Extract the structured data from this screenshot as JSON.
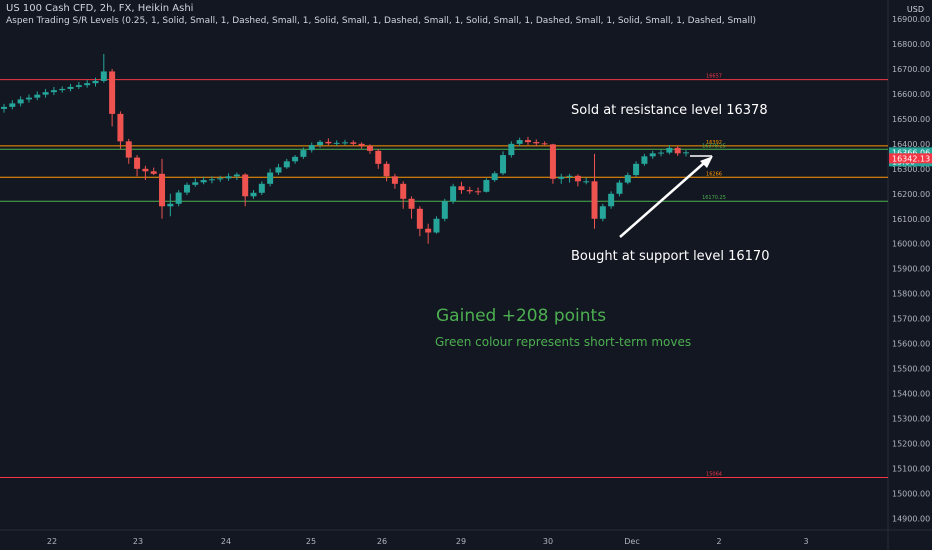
{
  "header": {
    "symbol_line": "US 100 Cash CFD, 2h, FX, Heikin Ashi",
    "indicator_line": "Aspen Trading S/R Levels (0.25, 1, Solid, Small, 1, Dashed, Small, 1, Solid, Small, 1, Dashed, Small, 1, Solid, Small, 1, Dashed, Small, 1, Solid, Small, 1, Dashed, Small)"
  },
  "currency": "USD",
  "colors": {
    "background": "#131722",
    "up_candle": "#26a69a",
    "down_candle": "#ef5350",
    "resistance_line": "#f23645",
    "support_line": "#4caf50",
    "orange_line": "#ff9800",
    "annotation_green": "#4caf50",
    "annotation_white": "#ffffff",
    "axis_text": "#b2b5be"
  },
  "chart_data": {
    "type": "candlestick",
    "title": "US 100 Cash CFD, 2h, FX, Heikin Ashi",
    "y_axis": {
      "range": [
        14880,
        16950
      ],
      "ticks": [
        14900,
        15000,
        15100,
        15200,
        15300,
        15400,
        15500,
        15600,
        15700,
        15800,
        15900,
        16000,
        16100,
        16200,
        16300,
        16400,
        16500,
        16600,
        16700,
        16800,
        16900
      ],
      "tick_labels": [
        "14900.00",
        "15000.00",
        "15100.00",
        "15200.00",
        "15300.00",
        "15400.00",
        "15500.00",
        "15600.00",
        "15700.00",
        "15800.00",
        "15900.00",
        "16000.00",
        "16100.00",
        "16200.00",
        "16300.00",
        "16400.00",
        "16500.00",
        "16600.00",
        "16700.00",
        "16800.00",
        "16900.00"
      ],
      "side": "right"
    },
    "x_axis": {
      "labels": [
        "22",
        "23",
        "24",
        "25",
        "26",
        "29",
        "30",
        "Dec",
        "2",
        "3"
      ]
    },
    "candles": [
      [
        16540,
        16560,
        16525,
        16548
      ],
      [
        16548,
        16575,
        16538,
        16562
      ],
      [
        16562,
        16590,
        16550,
        16578
      ],
      [
        16578,
        16598,
        16565,
        16585
      ],
      [
        16585,
        16610,
        16575,
        16597
      ],
      [
        16597,
        16620,
        16585,
        16607
      ],
      [
        16607,
        16628,
        16595,
        16615
      ],
      [
        16615,
        16630,
        16605,
        16620
      ],
      [
        16620,
        16640,
        16610,
        16628
      ],
      [
        16628,
        16648,
        16620,
        16635
      ],
      [
        16635,
        16655,
        16625,
        16643
      ],
      [
        16643,
        16665,
        16630,
        16652
      ],
      [
        16652,
        16760,
        16645,
        16690
      ],
      [
        16690,
        16700,
        16470,
        16520
      ],
      [
        16520,
        16530,
        16380,
        16410
      ],
      [
        16410,
        16420,
        16320,
        16345
      ],
      [
        16345,
        16355,
        16270,
        16300
      ],
      [
        16300,
        16312,
        16255,
        16290
      ],
      [
        16290,
        16305,
        16275,
        16280
      ],
      [
        16280,
        16340,
        16100,
        16150
      ],
      [
        16150,
        16200,
        16110,
        16160
      ],
      [
        16160,
        16215,
        16150,
        16205
      ],
      [
        16205,
        16245,
        16195,
        16236
      ],
      [
        16236,
        16262,
        16228,
        16246
      ],
      [
        16246,
        16268,
        16238,
        16255
      ],
      [
        16255,
        16270,
        16242,
        16258
      ],
      [
        16258,
        16272,
        16248,
        16262
      ],
      [
        16262,
        16282,
        16252,
        16270
      ],
      [
        16270,
        16285,
        16255,
        16277
      ],
      [
        16277,
        16282,
        16150,
        16190
      ],
      [
        16190,
        16215,
        16180,
        16204
      ],
      [
        16204,
        16250,
        16195,
        16240
      ],
      [
        16240,
        16300,
        16230,
        16285
      ],
      [
        16285,
        16320,
        16275,
        16306
      ],
      [
        16306,
        16340,
        16300,
        16330
      ],
      [
        16330,
        16355,
        16320,
        16348
      ],
      [
        16348,
        16385,
        16340,
        16375
      ],
      [
        16375,
        16405,
        16365,
        16395
      ],
      [
        16395,
        16415,
        16385,
        16408
      ],
      [
        16408,
        16422,
        16395,
        16402
      ],
      [
        16402,
        16414,
        16392,
        16404
      ],
      [
        16404,
        16416,
        16395,
        16406
      ],
      [
        16406,
        16414,
        16390,
        16400
      ],
      [
        16400,
        16406,
        16380,
        16392
      ],
      [
        16392,
        16398,
        16360,
        16372
      ],
      [
        16372,
        16380,
        16300,
        16320
      ],
      [
        16320,
        16330,
        16250,
        16270
      ],
      [
        16270,
        16280,
        16220,
        16240
      ],
      [
        16240,
        16250,
        16140,
        16180
      ],
      [
        16180,
        16190,
        16100,
        16140
      ],
      [
        16140,
        16150,
        16030,
        16060
      ],
      [
        16060,
        16080,
        16000,
        16045
      ],
      [
        16045,
        16110,
        16040,
        16100
      ],
      [
        16100,
        16180,
        16090,
        16170
      ],
      [
        16170,
        16240,
        16160,
        16230
      ],
      [
        16230,
        16248,
        16200,
        16215
      ],
      [
        16215,
        16228,
        16200,
        16210
      ],
      [
        16210,
        16225,
        16195,
        16208
      ],
      [
        16208,
        16262,
        16205,
        16255
      ],
      [
        16255,
        16290,
        16248,
        16282
      ],
      [
        16282,
        16370,
        16275,
        16355
      ],
      [
        16355,
        16410,
        16345,
        16400
      ],
      [
        16400,
        16425,
        16390,
        16415
      ],
      [
        16415,
        16428,
        16395,
        16407
      ],
      [
        16407,
        16418,
        16390,
        16402
      ],
      [
        16402,
        16410,
        16395,
        16398
      ],
      [
        16398,
        16400,
        16240,
        16260
      ],
      [
        16260,
        16280,
        16240,
        16268
      ],
      [
        16268,
        16280,
        16245,
        16272
      ],
      [
        16272,
        16278,
        16230,
        16250
      ],
      [
        16250,
        16265,
        16238,
        16250
      ],
      [
        16250,
        16360,
        16060,
        16100
      ],
      [
        16100,
        16160,
        16090,
        16150
      ],
      [
        16150,
        16210,
        16140,
        16200
      ],
      [
        16200,
        16255,
        16190,
        16245
      ],
      [
        16245,
        16285,
        16238,
        16275
      ],
      [
        16275,
        16330,
        16268,
        16320
      ],
      [
        16320,
        16360,
        16312,
        16350
      ],
      [
        16350,
        16372,
        16340,
        16362
      ],
      [
        16362,
        16376,
        16350,
        16365
      ],
      [
        16365,
        16395,
        16358,
        16384
      ],
      [
        16384,
        16390,
        16352,
        16362
      ],
      [
        16362,
        16375,
        16350,
        16366
      ]
    ],
    "levels": [
      {
        "value": 16657,
        "label": "16657",
        "color": "#f23645"
      },
      {
        "value": 16392,
        "label": "16392",
        "color": "#ff9800"
      },
      {
        "value": 16378.25,
        "label": "16378.25",
        "color": "#4caf50"
      },
      {
        "value": 16266,
        "label": "16266",
        "color": "#ff9800"
      },
      {
        "value": 16170.25,
        "label": "16170.25",
        "color": "#4caf50"
      },
      {
        "value": 15064,
        "label": "15064",
        "color": "#f23645"
      }
    ],
    "price_tags": [
      {
        "value": 16366,
        "label": "16366.06",
        "sub": "15:00",
        "color": "#26a69a"
      },
      {
        "value": 16342,
        "label": "16342.13",
        "color": "#f23645"
      }
    ],
    "annotations": {
      "sold": "Sold at resistance level 16378",
      "bought": "Bought at support level 16170",
      "gained": "Gained +208 points",
      "green_note": "Green colour represents short-term moves"
    }
  }
}
